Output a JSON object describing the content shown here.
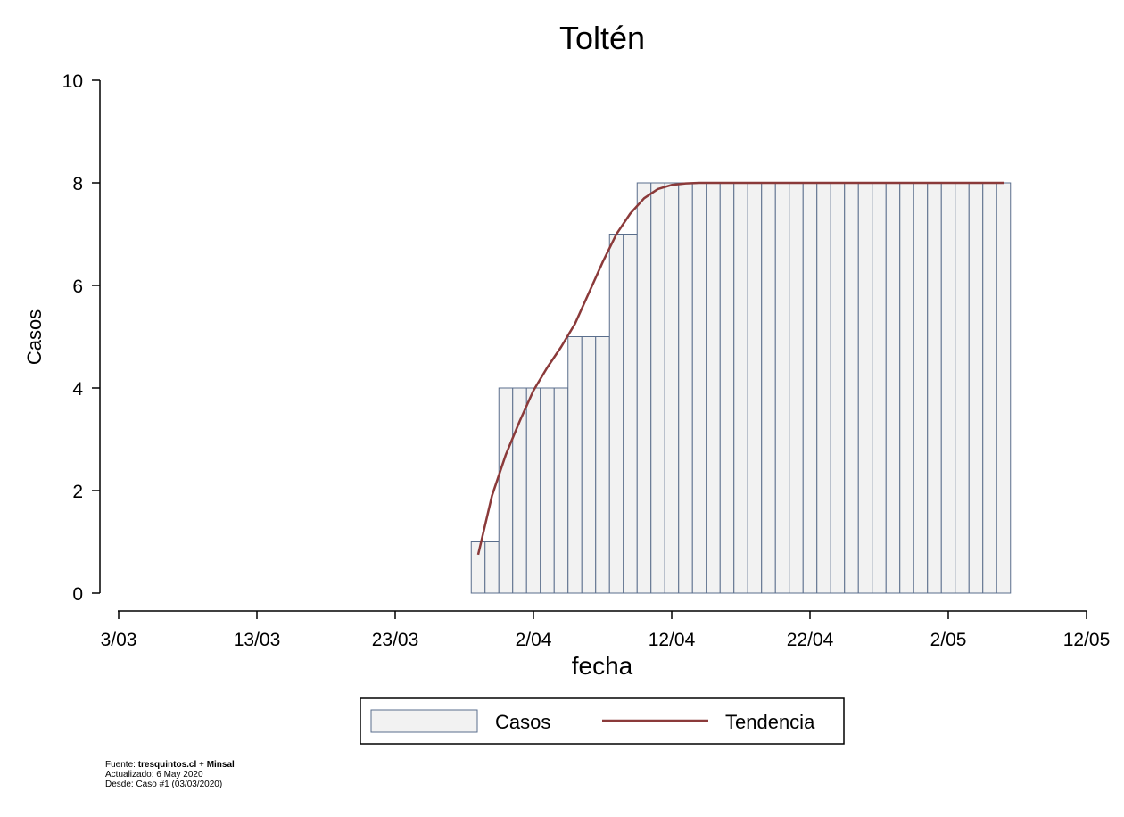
{
  "chart_data": {
    "type": "bar",
    "title": "Toltén",
    "xlabel": "fecha",
    "ylabel": "Casos",
    "ylim": [
      0,
      10
    ],
    "yticks": [
      0,
      2,
      4,
      6,
      8,
      10
    ],
    "xlim_days_from_mar3": [
      0,
      70
    ],
    "xticks": [
      {
        "label": "3/03",
        "day": 0
      },
      {
        "label": "13/03",
        "day": 10
      },
      {
        "label": "23/03",
        "day": 20
      },
      {
        "label": "2/04",
        "day": 30
      },
      {
        "label": "12/04",
        "day": 40
      },
      {
        "label": "22/04",
        "day": 50
      },
      {
        "label": "2/05",
        "day": 60
      },
      {
        "label": "12/05",
        "day": 70
      }
    ],
    "grid": false,
    "legend_position": "bottom",
    "series": [
      {
        "name": "Casos",
        "kind": "bar",
        "color": "#f2f2f2",
        "edge_color": "#5a6e8c",
        "start_day": 25.5,
        "values": [
          1,
          1,
          4,
          4,
          4,
          4,
          4,
          5,
          5,
          5,
          7,
          7,
          8,
          8,
          8,
          8,
          8,
          8,
          8,
          8,
          8,
          8,
          8,
          8,
          8,
          8,
          8,
          8,
          8,
          8,
          8,
          8,
          8,
          8,
          8,
          8,
          8,
          8,
          8
        ]
      },
      {
        "name": "Tendencia",
        "kind": "line",
        "color": "#8b3a3a",
        "start_day": 26,
        "values": [
          0.75,
          1.9,
          2.7,
          3.35,
          3.95,
          4.4,
          4.8,
          5.25,
          5.85,
          6.45,
          7.0,
          7.4,
          7.7,
          7.88,
          7.96,
          7.99,
          8,
          8,
          8,
          8,
          8,
          8,
          8,
          8,
          8,
          8,
          8,
          8,
          8,
          8,
          8,
          8,
          8,
          8,
          8,
          8,
          8,
          8,
          8
        ]
      }
    ]
  },
  "footer": {
    "source_prefix": "Fuente: ",
    "source_main": "tresquintos.cl",
    "source_sep": " + ",
    "source_second": "Minsal",
    "updated": "Actualizado: 6 May 2020",
    "since": "Desde: Caso #1   (03/03/2020)"
  }
}
